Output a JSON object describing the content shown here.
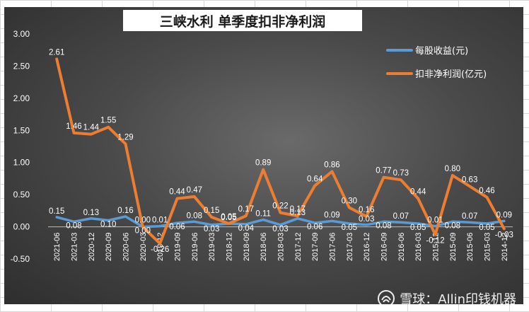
{
  "page_title": "三峡水利 单季度扣非净利润",
  "watermark": "雪球：Allin印钱机器",
  "chart_data": {
    "type": "line",
    "title": "三峡水利 单季度扣非净利润",
    "xlabel": "",
    "ylabel": "",
    "ylim": [
      -0.5,
      3.0
    ],
    "yticks": [
      "3.00",
      "2.50",
      "2.00",
      "1.50",
      "1.00",
      "0.50",
      "0.00",
      "-0.50"
    ],
    "grid": false,
    "legend_position": "top-right",
    "categories": [
      "2021-06",
      "2021-03",
      "2020-12",
      "2020-09",
      "2020-06",
      "2020-03",
      "2019-12",
      "2019-09",
      "2019-06",
      "2019-03",
      "2018-12",
      "2018-09",
      "2018-06",
      "2018-03",
      "2017-12",
      "2017-09",
      "2017-06",
      "2017-03",
      "2016-12",
      "2016-09",
      "2016-06",
      "2016-03",
      "2015-12",
      "2015-09",
      "2015-06",
      "2015-03",
      "2014-12"
    ],
    "series": [
      {
        "name": "每股收益(元)",
        "color": "#5b9bd5",
        "values": [
          0.15,
          0.08,
          0.13,
          0.1,
          0.16,
          0.0,
          0.01,
          0.06,
          0.08,
          0.03,
          0.05,
          0.04,
          0.11,
          0.03,
          0.13,
          0.06,
          0.09,
          0.05,
          0.03,
          0.08,
          0.07,
          0.05,
          0.01,
          0.08,
          0.07,
          0.05,
          0.09
        ],
        "labels": [
          "0.15",
          "0.08",
          "0.13",
          "0.10",
          "0.16",
          "0.00",
          "0.01",
          "0.06",
          "0.08",
          "0.03",
          "0.05",
          "0.04",
          "0.11",
          "0.03",
          "0.13",
          "0.06",
          "0.09",
          "0.05",
          "0.03",
          "0.08",
          "0.07",
          "0.05",
          "0.01",
          "0.08",
          "0.07",
          "0.05",
          "0.09"
        ]
      },
      {
        "name": "扣非净利润(亿元)",
        "color": "#ed7d31",
        "values": [
          2.61,
          1.46,
          1.44,
          1.55,
          1.29,
          0.0,
          -0.26,
          0.44,
          0.47,
          0.15,
          0.05,
          0.17,
          0.89,
          0.22,
          0.17,
          0.64,
          0.86,
          0.3,
          0.16,
          0.77,
          0.73,
          0.44,
          -0.12,
          0.8,
          0.63,
          0.46,
          -0.03
        ],
        "labels": [
          "2.61",
          "1.46",
          "1.44",
          "1.55",
          "1.29",
          "0.00",
          "-0.26",
          "0.44",
          "0.47",
          "0.15",
          "0.05",
          "0.17",
          "0.89",
          "0.22",
          "0.17",
          "0.64",
          "0.86",
          "0.30",
          "0.16",
          "0.77",
          "0.73",
          "0.44",
          "-0.12",
          "0.80",
          "0.63",
          "0.46",
          "-0.03"
        ]
      }
    ]
  }
}
